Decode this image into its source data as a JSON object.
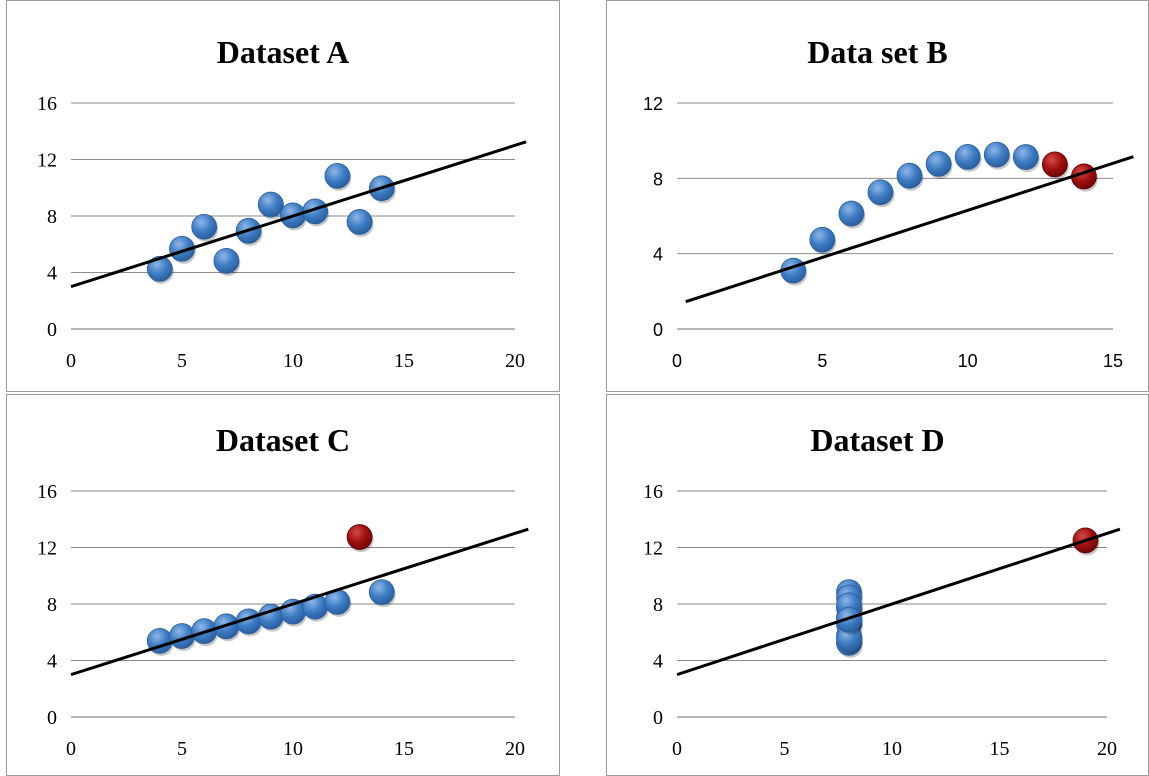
{
  "colors": {
    "point": "#3d7cc4",
    "point_highlight": "#a00f0f",
    "trendline": "#000000",
    "gridline": "#8a8a8a"
  },
  "chart_data": [
    {
      "type": "scatter",
      "title": "Dataset A",
      "xlim": [
        0,
        20
      ],
      "ylim": [
        0,
        16
      ],
      "xticks": [
        "0",
        "5",
        "10",
        "15",
        "20"
      ],
      "yticks": [
        "0",
        "4",
        "8",
        "12",
        "16"
      ],
      "grid": "horizontal",
      "points": [
        {
          "x": 4,
          "y": 4.26
        },
        {
          "x": 5,
          "y": 5.68
        },
        {
          "x": 6,
          "y": 7.24
        },
        {
          "x": 7,
          "y": 4.82
        },
        {
          "x": 8,
          "y": 6.95
        },
        {
          "x": 9,
          "y": 8.81
        },
        {
          "x": 10,
          "y": 8.04
        },
        {
          "x": 11,
          "y": 8.33
        },
        {
          "x": 12,
          "y": 10.84
        },
        {
          "x": 13,
          "y": 7.58
        },
        {
          "x": 14,
          "y": 9.96
        }
      ],
      "trendline": {
        "slope": 0.5,
        "intercept": 3.0
      }
    },
    {
      "type": "scatter",
      "title": "Data set B",
      "xlim": [
        0,
        15
      ],
      "ylim": [
        0,
        12
      ],
      "xticks": [
        "0",
        "5",
        "10",
        "15"
      ],
      "yticks": [
        "0",
        "4",
        "8",
        "12"
      ],
      "grid": "horizontal",
      "points": [
        {
          "x": 4,
          "y": 3.1
        },
        {
          "x": 5,
          "y": 4.74
        },
        {
          "x": 6,
          "y": 6.13
        },
        {
          "x": 7,
          "y": 7.26
        },
        {
          "x": 8,
          "y": 8.14
        },
        {
          "x": 9,
          "y": 8.77
        },
        {
          "x": 10,
          "y": 9.14
        },
        {
          "x": 11,
          "y": 9.26
        },
        {
          "x": 12,
          "y": 9.13
        },
        {
          "x": 13,
          "y": 8.74,
          "highlight": true
        },
        {
          "x": 14,
          "y": 8.1,
          "highlight": true
        }
      ],
      "trendline": {
        "slope": 0.5,
        "intercept": 1.3
      }
    },
    {
      "type": "scatter",
      "title": "Dataset C",
      "xlim": [
        0,
        20
      ],
      "ylim": [
        0,
        16
      ],
      "xticks": [
        "0",
        "5",
        "10",
        "15",
        "20"
      ],
      "yticks": [
        "0",
        "4",
        "8",
        "12",
        "16"
      ],
      "grid": "horizontal",
      "points": [
        {
          "x": 4,
          "y": 5.39
        },
        {
          "x": 5,
          "y": 5.73
        },
        {
          "x": 6,
          "y": 6.08
        },
        {
          "x": 7,
          "y": 6.42
        },
        {
          "x": 8,
          "y": 6.77
        },
        {
          "x": 9,
          "y": 7.11
        },
        {
          "x": 10,
          "y": 7.46
        },
        {
          "x": 11,
          "y": 7.81
        },
        {
          "x": 12,
          "y": 8.15
        },
        {
          "x": 13,
          "y": 12.74,
          "highlight": true
        },
        {
          "x": 14,
          "y": 8.84
        }
      ],
      "trendline": {
        "slope": 0.5,
        "intercept": 3.0
      }
    },
    {
      "type": "scatter",
      "title": "Dataset D",
      "xlim": [
        0,
        20
      ],
      "ylim": [
        0,
        16
      ],
      "xticks": [
        "0",
        "5",
        "10",
        "15",
        "20"
      ],
      "yticks": [
        "0",
        "4",
        "8",
        "12",
        "16"
      ],
      "grid": "horizontal",
      "points": [
        {
          "x": 8,
          "y": 6.58
        },
        {
          "x": 8,
          "y": 5.76
        },
        {
          "x": 8,
          "y": 7.71
        },
        {
          "x": 8,
          "y": 8.84
        },
        {
          "x": 8,
          "y": 8.47
        },
        {
          "x": 8,
          "y": 7.04
        },
        {
          "x": 8,
          "y": 5.25
        },
        {
          "x": 8,
          "y": 5.56
        },
        {
          "x": 8,
          "y": 7.91
        },
        {
          "x": 8,
          "y": 6.89
        },
        {
          "x": 19,
          "y": 12.5,
          "highlight": true
        }
      ],
      "trendline": {
        "slope": 0.5,
        "intercept": 3.0
      }
    }
  ]
}
